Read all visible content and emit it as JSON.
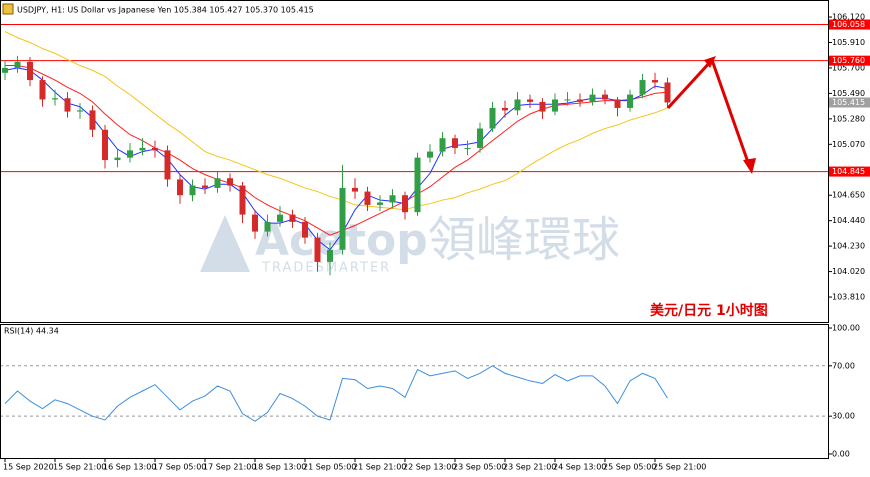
{
  "chart_data": [
    {
      "type": "candlestick",
      "title": "USDJPY, H1: US Dollar vs Japanese Yen 105.384 105.427 105.370 105.415",
      "annotation": "美元/日元   1小时图",
      "watermark": {
        "brand": "Acetop",
        "name": "領峰環球",
        "tagline": "TRADESMARTER"
      },
      "categories": [
        "15 Sep 2020",
        null,
        null,
        null,
        "15 Sep 21:00",
        null,
        null,
        null,
        "16 Sep 13:00",
        null,
        null,
        null,
        "17 Sep 05:00",
        null,
        null,
        null,
        "17 Sep 21:00",
        null,
        null,
        null,
        "18 Sep 13:00",
        null,
        null,
        null,
        "21 Sep 05:00",
        null,
        null,
        null,
        "21 Sep 21:00",
        null,
        null,
        null,
        "22 Sep 13:00",
        null,
        null,
        null,
        "23 Sep 05:00",
        null,
        null,
        null,
        "23 Sep 21:00",
        null,
        null,
        null,
        "24 Sep 13:00",
        null,
        null,
        null,
        "25 Sep 05:00",
        null,
        null,
        null,
        "25 Sep 21:00",
        null
      ],
      "open": [
        105.66,
        105.7,
        105.75,
        105.6,
        105.44,
        105.45,
        105.34,
        105.35,
        105.19,
        104.94,
        104.96,
        105.02,
        105.04,
        105.02,
        104.78,
        104.65,
        104.73,
        104.71,
        104.79,
        104.73,
        104.49,
        104.35,
        104.43,
        104.49,
        104.43,
        104.3,
        104.1,
        104.2,
        104.71,
        104.68,
        104.57,
        104.59,
        104.65,
        104.51,
        104.96,
        105.01,
        105.12,
        105.04,
        105.04,
        105.2,
        105.37,
        105.35,
        105.44,
        105.42,
        105.34,
        105.44,
        105.44,
        105.42,
        105.48,
        105.44,
        105.37,
        105.48,
        105.6,
        105.58
      ],
      "high": [
        105.76,
        105.8,
        105.79,
        105.63,
        105.52,
        105.5,
        105.41,
        105.39,
        105.23,
        105.03,
        105.08,
        105.12,
        105.1,
        105.06,
        104.82,
        104.78,
        104.79,
        104.84,
        104.83,
        104.76,
        104.53,
        104.49,
        104.56,
        104.53,
        104.47,
        104.34,
        104.26,
        104.9,
        104.79,
        104.72,
        104.65,
        104.7,
        104.68,
        105.0,
        105.07,
        105.17,
        105.15,
        105.1,
        105.25,
        105.42,
        105.43,
        105.5,
        105.48,
        105.45,
        105.49,
        105.5,
        105.49,
        105.53,
        105.52,
        105.46,
        105.52,
        105.65,
        105.66,
        105.62
      ],
      "low": [
        105.6,
        105.66,
        105.55,
        105.38,
        105.39,
        105.29,
        105.28,
        105.13,
        104.87,
        104.88,
        104.92,
        104.98,
        104.96,
        104.72,
        104.58,
        104.6,
        104.66,
        104.67,
        104.68,
        104.42,
        104.29,
        104.31,
        104.39,
        104.38,
        104.25,
        104.02,
        103.99,
        104.16,
        104.62,
        104.52,
        104.52,
        104.54,
        104.45,
        104.48,
        104.92,
        104.97,
        104.99,
        104.98,
        105.0,
        105.17,
        105.29,
        105.31,
        105.37,
        105.28,
        105.31,
        105.39,
        105.38,
        105.39,
        105.4,
        105.3,
        105.34,
        105.45,
        105.53,
        105.37
      ],
      "close": [
        105.7,
        105.75,
        105.6,
        105.44,
        105.45,
        105.34,
        105.35,
        105.19,
        104.94,
        104.96,
        105.02,
        105.04,
        105.02,
        104.78,
        104.65,
        104.73,
        104.71,
        104.79,
        104.73,
        104.49,
        104.35,
        104.43,
        104.49,
        104.43,
        104.3,
        104.1,
        104.2,
        104.71,
        104.68,
        104.57,
        104.59,
        104.65,
        104.51,
        104.96,
        105.01,
        105.12,
        105.04,
        105.04,
        105.2,
        105.37,
        105.35,
        105.44,
        105.42,
        105.34,
        105.44,
        105.44,
        105.42,
        105.48,
        105.44,
        105.37,
        105.48,
        105.6,
        105.58,
        105.415
      ],
      "up_color": "#2f9e44",
      "down_color": "#d42a2a",
      "series": [
        {
          "color": "#f5c518",
          "values": [
            106.0,
            105.95,
            105.91,
            105.86,
            105.82,
            105.77,
            105.72,
            105.68,
            105.63,
            105.55,
            105.48,
            105.4,
            105.32,
            105.24,
            105.17,
            105.09,
            105.01,
            104.97,
            104.94,
            104.9,
            104.86,
            104.82,
            104.79,
            104.75,
            104.71,
            104.68,
            104.64,
            104.61,
            104.57,
            104.56,
            104.55,
            104.54,
            104.53,
            104.56,
            104.58,
            104.61,
            104.63,
            104.67,
            104.7,
            104.74,
            104.77,
            104.83,
            104.9,
            104.96,
            105.02,
            105.07,
            105.11,
            105.16,
            105.2,
            105.23,
            105.27,
            105.3,
            105.33,
            105.37
          ]
        },
        {
          "color": "#ff2020",
          "values": [
            105.72,
            105.72,
            105.7,
            105.65,
            105.6,
            105.54,
            105.49,
            105.42,
            105.32,
            105.23,
            105.15,
            105.1,
            105.04,
            105.0,
            104.94,
            104.87,
            104.82,
            104.78,
            104.75,
            104.71,
            104.63,
            104.57,
            104.52,
            104.48,
            104.44,
            104.38,
            104.32,
            104.36,
            104.4,
            104.45,
            104.5,
            104.55,
            104.6,
            104.66,
            104.72,
            104.8,
            104.88,
            104.94,
            105.02,
            105.1,
            105.18,
            105.26,
            105.32,
            105.36,
            105.39,
            105.4,
            105.41,
            105.42,
            105.43,
            105.43,
            105.44,
            105.46,
            105.49,
            105.5
          ]
        },
        {
          "color": "#2030ff",
          "values": [
            105.68,
            105.7,
            105.68,
            105.6,
            105.5,
            105.41,
            105.38,
            105.29,
            105.16,
            105.03,
            104.97,
            105.01,
            105.03,
            104.95,
            104.82,
            104.72,
            104.7,
            104.74,
            104.74,
            104.67,
            104.52,
            104.42,
            104.42,
            104.45,
            104.41,
            104.28,
            104.2,
            104.34,
            104.53,
            104.65,
            104.61,
            104.6,
            104.58,
            104.71,
            104.83,
            105.03,
            105.06,
            105.07,
            105.09,
            105.2,
            105.31,
            105.39,
            105.4,
            105.4,
            105.4,
            105.41,
            105.43,
            105.45,
            105.45,
            105.43,
            105.43,
            105.48,
            105.55,
            105.53
          ]
        }
      ],
      "levels": [
        {
          "value": 106.058,
          "label": "106.058"
        },
        {
          "value": 105.76,
          "label": "105.760"
        },
        {
          "value": 104.845,
          "label": "104.845"
        }
      ],
      "level_color": "#ff0000",
      "current": {
        "value": 105.415,
        "label": "105.415"
      },
      "ylim": [
        103.604,
        106.244
      ],
      "yticks": [
        {
          "value": 106.12,
          "label": "106.120"
        },
        {
          "value": 105.91,
          "label": "105.910"
        },
        {
          "value": 105.7,
          "label": "105.700"
        },
        {
          "value": 105.49,
          "label": "105.490"
        },
        {
          "value": 105.28,
          "label": "105.280"
        },
        {
          "value": 105.07,
          "label": "105.070"
        },
        {
          "value": 104.86,
          "label": "104.860"
        },
        {
          "value": 104.65,
          "label": "104.650"
        },
        {
          "value": 104.44,
          "label": "104.440"
        },
        {
          "value": 104.23,
          "label": "104.230"
        },
        {
          "value": 104.02,
          "label": "104.020"
        },
        {
          "value": 103.81,
          "label": "103.810"
        }
      ]
    },
    {
      "type": "line",
      "title": "RSI(14) 44.34",
      "color": "#3c8fe0",
      "values": [
        40,
        50,
        42,
        36,
        43,
        40,
        35,
        30,
        27,
        38,
        45,
        50,
        55,
        45,
        35,
        42,
        46,
        54,
        50,
        32,
        26,
        33,
        48,
        44,
        38,
        30,
        27,
        60,
        59,
        52,
        54,
        52,
        45,
        67,
        62,
        64,
        66,
        60,
        64,
        70,
        64,
        61,
        58,
        56,
        63,
        58,
        62,
        62,
        54,
        40,
        58,
        64,
        60,
        44.34
      ],
      "ylim": [
        -3.2,
        102.4
      ],
      "yticks": [
        {
          "value": 100,
          "label": "100.00"
        },
        {
          "value": 70,
          "label": "70.00"
        },
        {
          "value": 30,
          "label": "30.00"
        },
        {
          "value": 0,
          "label": "0.00"
        }
      ],
      "dashed_levels": [
        70,
        30
      ]
    }
  ]
}
